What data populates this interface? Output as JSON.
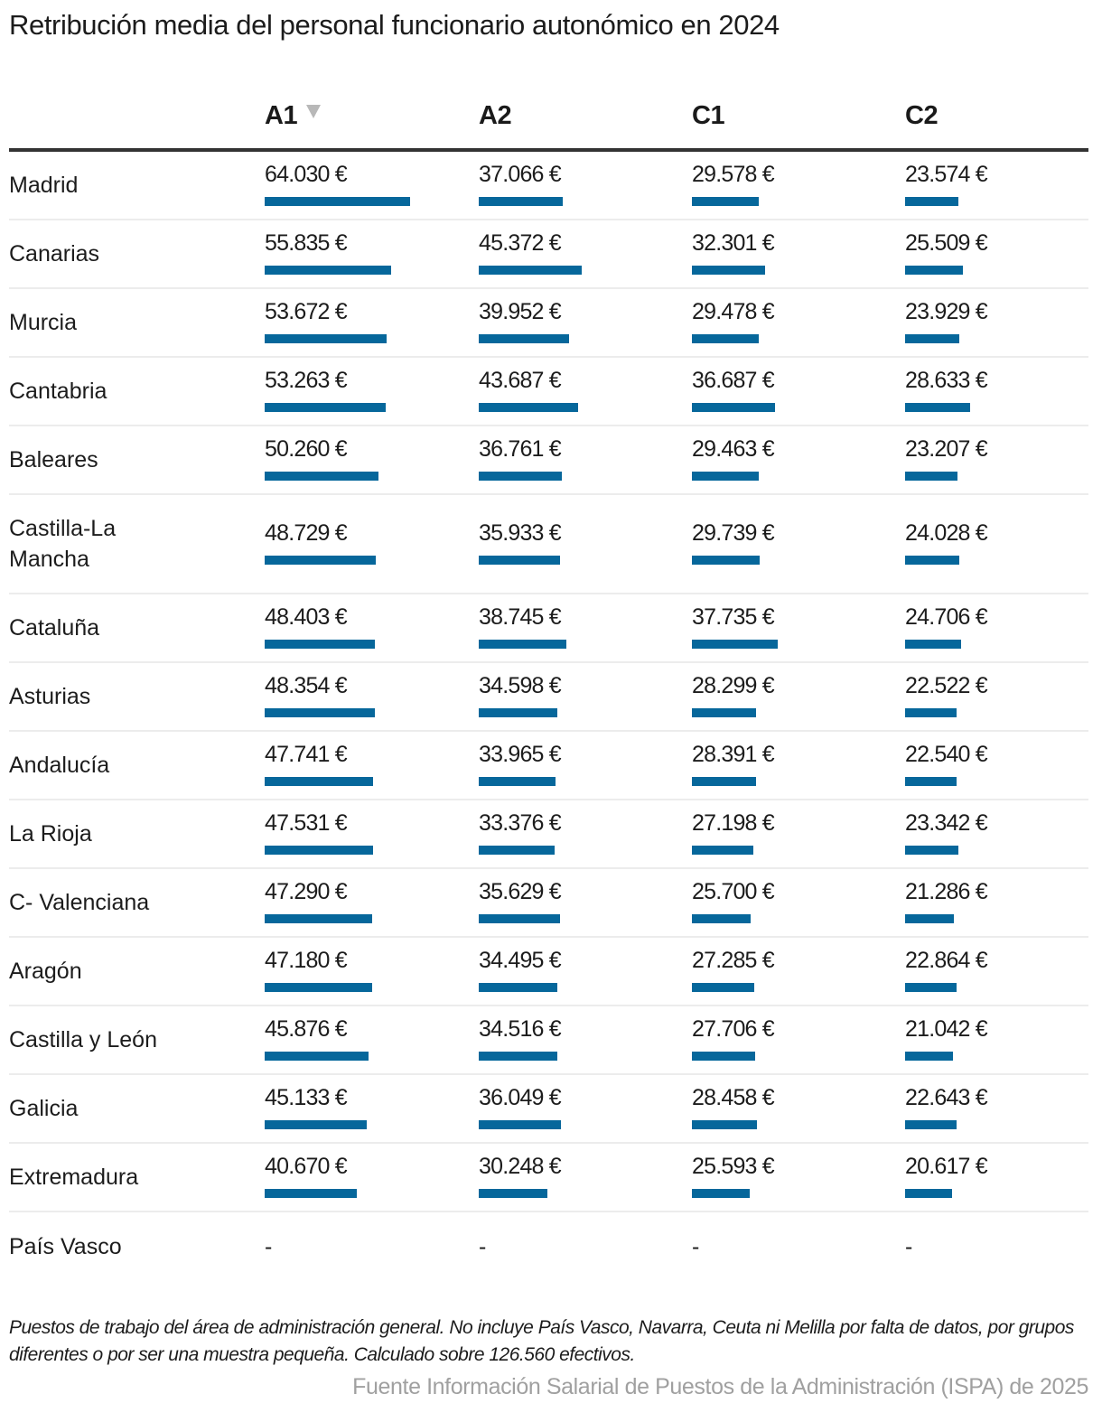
{
  "title": "Retribución media del personal funcionario autonómico en 2024",
  "columns": [
    {
      "key": "A1",
      "label": "A1",
      "sorted": true,
      "sort_icon": "sort-descending-icon"
    },
    {
      "key": "A2",
      "label": "A2",
      "sorted": false
    },
    {
      "key": "C1",
      "label": "C1",
      "sorted": false
    },
    {
      "key": "C2",
      "label": "C2",
      "sorted": false
    }
  ],
  "bar_color": "#06679b",
  "rows": [
    {
      "region": "Madrid",
      "values": [
        "64.030 €",
        "37.066 €",
        "29.578 €",
        "23.574 €"
      ],
      "raw": [
        64030,
        37066,
        29578,
        23574
      ]
    },
    {
      "region": "Canarias",
      "values": [
        "55.835 €",
        "45.372 €",
        "32.301 €",
        "25.509 €"
      ],
      "raw": [
        55835,
        45372,
        32301,
        25509
      ]
    },
    {
      "region": "Murcia",
      "values": [
        "53.672 €",
        "39.952 €",
        "29.478 €",
        "23.929 €"
      ],
      "raw": [
        53672,
        39952,
        29478,
        23929
      ]
    },
    {
      "region": "Cantabria",
      "values": [
        "53.263 €",
        "43.687 €",
        "36.687 €",
        "28.633 €"
      ],
      "raw": [
        53263,
        43687,
        36687,
        28633
      ]
    },
    {
      "region": "Baleares",
      "values": [
        "50.260 €",
        "36.761 €",
        "29.463 €",
        "23.207 €"
      ],
      "raw": [
        50260,
        36761,
        29463,
        23207
      ]
    },
    {
      "region": "Castilla-La Mancha",
      "values": [
        "48.729 €",
        "35.933 €",
        "29.739 €",
        "24.028 €"
      ],
      "raw": [
        48729,
        35933,
        29739,
        24028
      ]
    },
    {
      "region": "Cataluña",
      "values": [
        "48.403 €",
        "38.745 €",
        "37.735 €",
        "24.706 €"
      ],
      "raw": [
        48403,
        38745,
        37735,
        24706
      ]
    },
    {
      "region": "Asturias",
      "values": [
        "48.354 €",
        "34.598 €",
        "28.299 €",
        "22.522 €"
      ],
      "raw": [
        48354,
        34598,
        28299,
        22522
      ]
    },
    {
      "region": "Andalucía",
      "values": [
        "47.741 €",
        "33.965 €",
        "28.391 €",
        "22.540 €"
      ],
      "raw": [
        47741,
        33965,
        28391,
        22540
      ]
    },
    {
      "region": "La Rioja",
      "values": [
        "47.531 €",
        "33.376 €",
        "27.198 €",
        "23.342 €"
      ],
      "raw": [
        47531,
        33376,
        27198,
        23342
      ]
    },
    {
      "region": "C- Valenciana",
      "values": [
        "47.290 €",
        "35.629 €",
        "25.700 €",
        "21.286 €"
      ],
      "raw": [
        47290,
        35629,
        25700,
        21286
      ]
    },
    {
      "region": "Aragón",
      "values": [
        "47.180 €",
        "34.495 €",
        "27.285 €",
        "22.864 €"
      ],
      "raw": [
        47180,
        34495,
        27285,
        22864
      ]
    },
    {
      "region": "Castilla y León",
      "values": [
        "45.876 €",
        "34.516 €",
        "27.706 €",
        "21.042 €"
      ],
      "raw": [
        45876,
        34516,
        27706,
        21042
      ]
    },
    {
      "region": "Galicia",
      "values": [
        "45.133 €",
        "36.049 €",
        "28.458 €",
        "22.643 €"
      ],
      "raw": [
        45133,
        36049,
        28458,
        22643
      ]
    },
    {
      "region": "Extremadura",
      "values": [
        "40.670 €",
        "30.248 €",
        "25.593 €",
        "20.617 €"
      ],
      "raw": [
        40670,
        30248,
        25593,
        20617
      ]
    },
    {
      "region": "País Vasco",
      "values": [
        "-",
        "-",
        "-",
        "-"
      ],
      "raw": [
        null,
        null,
        null,
        null
      ]
    }
  ],
  "note": "Puestos de trabajo del área de administración general. No incluye País Vasco, Navarra, Ceuta ni Melilla por falta de datos, por grupos diferentes o por ser una muestra pequeña. Calculado sobre 126.560 efectivos.",
  "source": "Fuente Información Salarial de Puestos de la Administración (ISPA) de 2025",
  "chart_data": {
    "type": "table",
    "title": "Retribución media del personal funcionario autonómico en 2024",
    "categories": [
      "Madrid",
      "Canarias",
      "Murcia",
      "Cantabria",
      "Baleares",
      "Castilla-La Mancha",
      "Cataluña",
      "Asturias",
      "Andalucía",
      "La Rioja",
      "C- Valenciana",
      "Aragón",
      "Castilla y León",
      "Galicia",
      "Extremadura",
      "País Vasco"
    ],
    "series": [
      {
        "name": "A1",
        "values": [
          64030,
          55835,
          53672,
          53263,
          50260,
          48729,
          48403,
          48354,
          47741,
          47531,
          47290,
          47180,
          45876,
          45133,
          40670,
          null
        ]
      },
      {
        "name": "A2",
        "values": [
          37066,
          45372,
          39952,
          43687,
          36761,
          35933,
          38745,
          34598,
          33965,
          33376,
          35629,
          34495,
          34516,
          36049,
          30248,
          null
        ]
      },
      {
        "name": "C1",
        "values": [
          29578,
          32301,
          29478,
          36687,
          29463,
          29739,
          37735,
          28299,
          28391,
          27198,
          25700,
          27285,
          27706,
          28458,
          25593,
          null
        ]
      },
      {
        "name": "C2",
        "values": [
          23574,
          25509,
          23929,
          28633,
          23207,
          24028,
          24706,
          22522,
          22540,
          23342,
          21286,
          22864,
          21042,
          22643,
          20617,
          null
        ]
      }
    ],
    "unit": "€",
    "sorted_by": "A1 descending",
    "xlabel": "",
    "ylabel": ""
  }
}
